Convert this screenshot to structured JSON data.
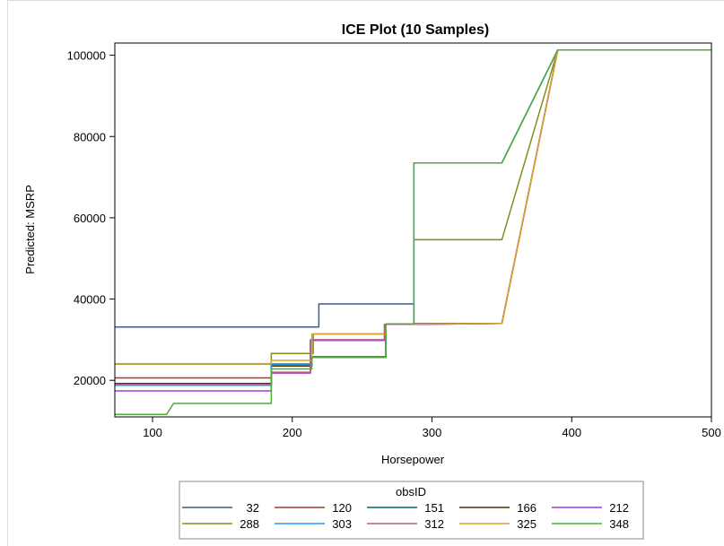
{
  "chart_data": {
    "type": "line",
    "title": "ICE Plot (10 Samples)",
    "xlabel": "Horsepower",
    "ylabel": "Predicted: MSRP",
    "xlim": [
      73,
      500
    ],
    "ylim": [
      11000,
      103000
    ],
    "x_ticks": [
      100,
      200,
      300,
      400,
      500
    ],
    "y_ticks": [
      20000,
      40000,
      60000,
      80000,
      100000
    ],
    "grid": false,
    "legend_title": "obsID",
    "legend_position": "bottom",
    "series": [
      {
        "name": "32",
        "color": "#445694",
        "x": [
          73,
          219,
          219,
          287,
          287,
          350,
          390,
          500
        ],
        "y": [
          33100,
          33100,
          38800,
          38800,
          34000,
          34000,
          101300,
          101300
        ]
      },
      {
        "name": "120",
        "color": "#A23A2E",
        "x": [
          73,
          185,
          185,
          213,
          213,
          266,
          266,
          287,
          350,
          390,
          500
        ],
        "y": [
          20600,
          20600,
          21800,
          21800,
          29800,
          29800,
          33800,
          33800,
          34000,
          101300,
          101300
        ]
      },
      {
        "name": "151",
        "color": "#01665E",
        "x": [
          73,
          185,
          185,
          214,
          214,
          267,
          267,
          287,
          287,
          350,
          390,
          500
        ],
        "y": [
          18800,
          18800,
          24000,
          24000,
          25800,
          25800,
          33900,
          33900,
          73500,
          73500,
          101300,
          101300
        ]
      },
      {
        "name": "166",
        "color": "#543005",
        "x": [
          73,
          185,
          185,
          214,
          214,
          267,
          267,
          287,
          350,
          390,
          500
        ],
        "y": [
          19200,
          19200,
          23500,
          23500,
          25600,
          25600,
          33900,
          33900,
          34000,
          101300,
          101300
        ]
      },
      {
        "name": "212",
        "color": "#9D3CDB",
        "x": [
          73,
          185,
          185,
          213,
          213,
          266,
          266,
          287,
          350,
          390,
          500
        ],
        "y": [
          17400,
          17400,
          21800,
          21800,
          29800,
          29800,
          33800,
          33800,
          34000,
          101300,
          101300
        ]
      },
      {
        "name": "288",
        "color": "#7F8E1F",
        "x": [
          73,
          185,
          185,
          215,
          215,
          267,
          267,
          287,
          287,
          350,
          390,
          500
        ],
        "y": [
          24000,
          24000,
          26600,
          26600,
          31400,
          31400,
          33900,
          33900,
          54600,
          54600,
          101300,
          101300
        ]
      },
      {
        "name": "303",
        "color": "#2597FA",
        "x": [
          73,
          185,
          185,
          214,
          214,
          267,
          267,
          287,
          287,
          350,
          390,
          500
        ],
        "y": [
          18800,
          18800,
          23800,
          23800,
          25700,
          25700,
          33900,
          33900,
          73500,
          73500,
          101300,
          101300
        ]
      },
      {
        "name": "312",
        "color": "#B26084",
        "x": [
          73,
          185,
          185,
          213,
          213,
          266,
          266,
          287,
          350,
          390,
          500
        ],
        "y": [
          19000,
          19000,
          22000,
          22000,
          30000,
          30000,
          33800,
          33800,
          34000,
          101300,
          101300
        ]
      },
      {
        "name": "325",
        "color": "#D8A42C",
        "x": [
          73,
          185,
          185,
          214,
          214,
          267,
          267,
          287,
          350,
          390,
          500
        ],
        "y": [
          24100,
          24100,
          24900,
          24900,
          31400,
          31400,
          33900,
          33900,
          34000,
          101300,
          101300
        ]
      },
      {
        "name": "348",
        "color": "#4DAD34",
        "x": [
          73,
          110,
          115,
          185,
          185,
          214,
          214,
          267,
          267,
          287,
          287,
          350,
          390,
          500
        ],
        "y": [
          11600,
          11600,
          14300,
          14300,
          22800,
          22800,
          25600,
          25600,
          33900,
          33900,
          73500,
          73500,
          101300,
          101300
        ]
      }
    ]
  }
}
